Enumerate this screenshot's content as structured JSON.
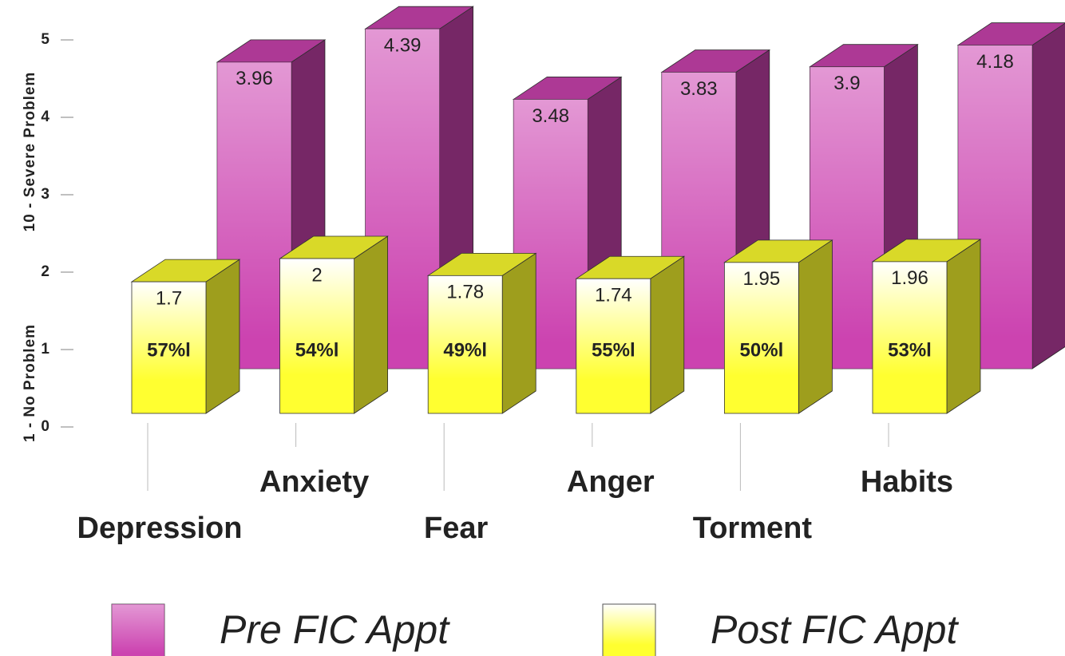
{
  "chart_data": {
    "type": "bar3d",
    "y_axis_labels": [
      "1 - No Problem",
      "10 - Severe Problem"
    ],
    "categories": [
      "Depression",
      "Anxiety",
      "Fear",
      "Anger",
      "Torment",
      "Habits"
    ],
    "series": [
      {
        "name": "Pre FIC Appt",
        "color": "#cc44b0",
        "values": [
          3.96,
          4.39,
          3.48,
          3.83,
          3.9,
          4.18
        ]
      },
      {
        "name": "Post FIC Appt",
        "color": "#ffff30",
        "values": [
          1.7,
          2,
          1.78,
          1.74,
          1.95,
          1.96
        ],
        "annotations": [
          "57%l",
          "54%l",
          "49%l",
          "55%l",
          "50%l",
          "53%l"
        ]
      }
    ],
    "ylim": [
      0,
      5
    ],
    "yticks": [
      0,
      1,
      2,
      3,
      4,
      5
    ]
  }
}
